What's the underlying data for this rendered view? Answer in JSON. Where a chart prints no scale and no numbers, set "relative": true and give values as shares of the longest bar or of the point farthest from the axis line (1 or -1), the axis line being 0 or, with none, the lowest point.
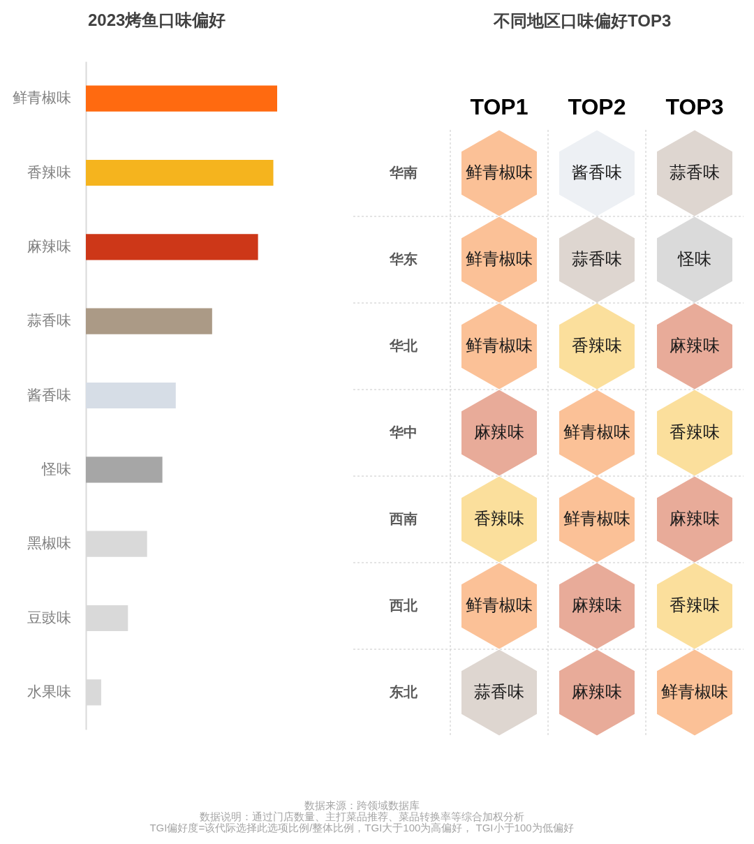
{
  "chart_data": [
    {
      "type": "bar",
      "orientation": "horizontal",
      "relative": true,
      "title": "2023烤鱼口味偏好",
      "categories": [
        "鲜青椒味",
        "香辣味",
        "麻辣味",
        "蒜香味",
        "酱香味",
        "怪味",
        "黑椒味",
        "豆豉味",
        "水果味"
      ],
      "values": [
        1,
        0.98,
        0.9,
        0.66,
        0.47,
        0.4,
        0.32,
        0.22,
        0.08
      ],
      "colors": [
        "#ff6a10",
        "#f5b41e",
        "#cd3718",
        "#ab9a86",
        "#d6dde6",
        "#a6a6a6",
        "#d9d9d9",
        "#d9d9d9",
        "#d9d9d9"
      ],
      "annotations": [
        "数据来源：跨领域数据库",
        "数据说明：通过门店数量、主打菜品推荐、菜品转换率等综合加权分析",
        "TGI偏好度=该代际选择此选项比例/整体比例，TGI大于100为高偏好， TGI小于100为低偏好"
      ]
    },
    {
      "type": "other",
      "title": "不同地区口味偏好TOP3",
      "categories": [
        "TOP1",
        "TOP2",
        "TOP3"
      ],
      "y_categories": [
        "华南",
        "华东",
        "华北",
        "华中",
        "西南",
        "西北",
        "东北"
      ],
      "cell_labels": [
        [
          "鲜青椒味",
          "酱香味",
          "蒜香味"
        ],
        [
          "鲜青椒味",
          "蒜香味",
          "怪味"
        ],
        [
          "鲜青椒味",
          "香辣味",
          "麻辣味"
        ],
        [
          "麻辣味",
          "鲜青椒味",
          "香辣味"
        ],
        [
          "香辣味",
          "鲜青椒味",
          "麻辣味"
        ],
        [
          "鲜青椒味",
          "麻辣味",
          "香辣味"
        ],
        [
          "蒜香味",
          "麻辣味",
          "鲜青椒味"
        ]
      ],
      "colors": [
        [
          "#fbc197",
          "#edf0f4",
          "#ded6d0"
        ],
        [
          "#fbc197",
          "#ded6d0",
          "#dadada"
        ],
        [
          "#fbc197",
          "#fbdf9c",
          "#e8ab99"
        ],
        [
          "#e8ab99",
          "#fbc197",
          "#fbdf9c"
        ],
        [
          "#fbdf9c",
          "#fbc197",
          "#e8ab99"
        ],
        [
          "#fbc197",
          "#e8ab99",
          "#fbdf9c"
        ],
        [
          "#ded6d0",
          "#e8ab99",
          "#fbc197"
        ]
      ]
    }
  ]
}
